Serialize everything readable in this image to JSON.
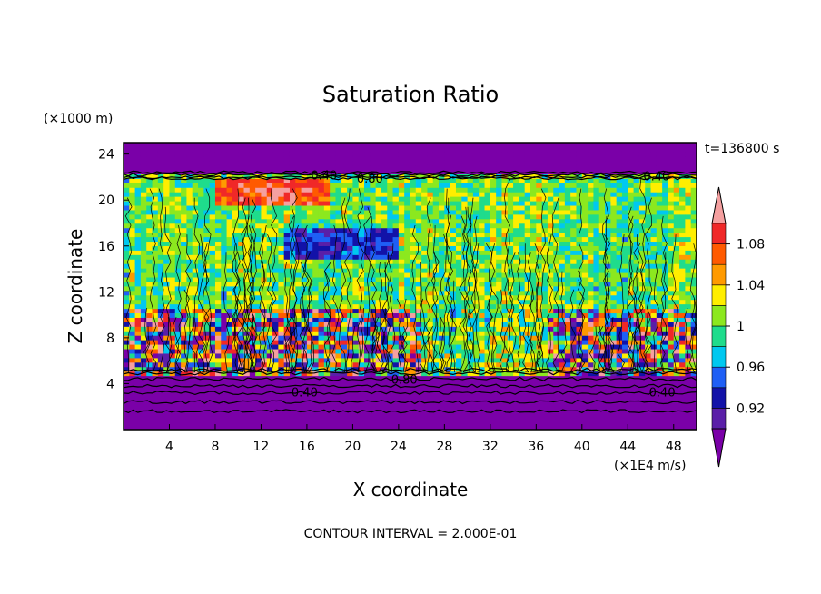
{
  "chart_data": {
    "type": "heatmap",
    "title": "Saturation Ratio",
    "xlabel": "X coordinate",
    "ylabel": "Z coordinate",
    "x_unit": "(×1E4 m/s)",
    "y_unit": "(×1000 m)",
    "time_label": "t=136800 s",
    "footer": "CONTOUR INTERVAL = 2.000E-01",
    "xlim": [
      0,
      50
    ],
    "ylim": [
      0,
      25
    ],
    "x_ticks": [
      4,
      8,
      12,
      16,
      20,
      24,
      28,
      32,
      36,
      40,
      44,
      48
    ],
    "y_ticks": [
      4,
      8,
      12,
      16,
      20,
      24
    ],
    "colorbar": {
      "labels": [
        "1.08",
        "1.04",
        "1",
        "0.96",
        "0.92"
      ],
      "label_values": [
        1.08,
        1.04,
        1.0,
        0.96,
        0.92
      ],
      "bins": [
        {
          "min": 0.9,
          "max": 0.92,
          "color": "#5a1fa8"
        },
        {
          "min": 0.92,
          "max": 0.94,
          "color": "#1212a8"
        },
        {
          "min": 0.94,
          "max": 0.96,
          "color": "#1f5ff5"
        },
        {
          "min": 0.96,
          "max": 0.98,
          "color": "#00c8f0"
        },
        {
          "min": 0.98,
          "max": 1.0,
          "color": "#1fdc8c"
        },
        {
          "min": 1.0,
          "max": 1.02,
          "color": "#8ce81f"
        },
        {
          "min": 1.02,
          "max": 1.04,
          "color": "#ffee00"
        },
        {
          "min": 1.04,
          "max": 1.06,
          "color": "#ff9a00"
        },
        {
          "min": 1.06,
          "max": 1.08,
          "color": "#ff5a00"
        },
        {
          "min": 1.08,
          "max": 1.1,
          "color": "#f02828"
        }
      ],
      "under_color": "#7a00a8",
      "over_color": "#f5a0a0"
    },
    "contour_labels": [
      "0.40",
      "0.80",
      "0.40",
      "0.40",
      "0.80",
      "0.40"
    ],
    "contour_interval": 0.2
  }
}
